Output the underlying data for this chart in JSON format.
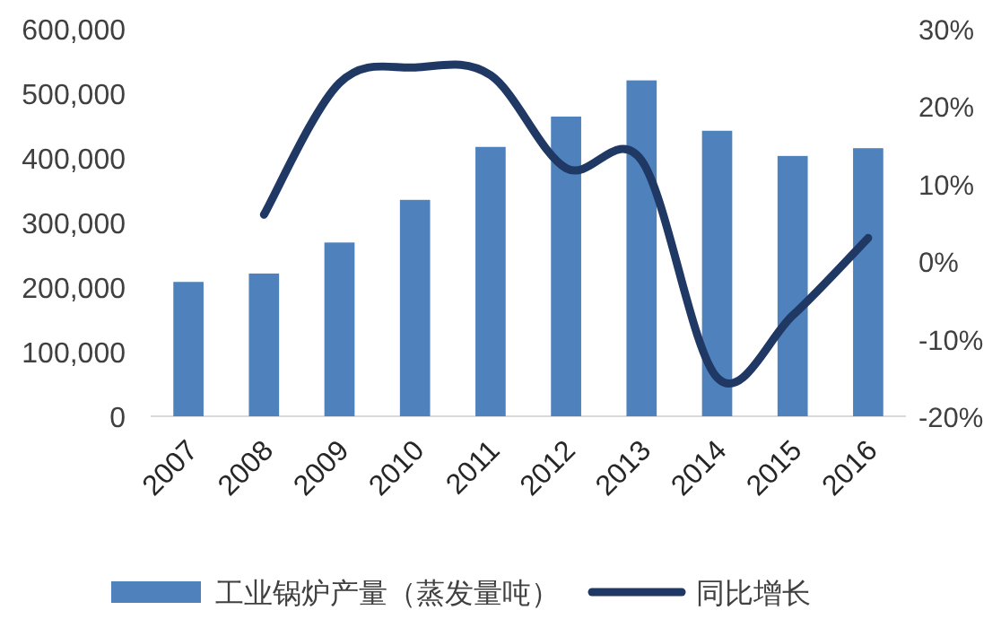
{
  "chart_data": {
    "type": "bar",
    "categories": [
      "2007",
      "2008",
      "2009",
      "2010",
      "2011",
      "2012",
      "2013",
      "2014",
      "2015",
      "2016"
    ],
    "series": [
      {
        "name": "工业锅炉产量（蒸发量吨）",
        "color": "#4f81bd",
        "values": [
          208000,
          221000,
          269000,
          335000,
          417000,
          464000,
          520000,
          442000,
          403000,
          415000
        ]
      },
      {
        "name": "同比增长",
        "type": "line",
        "axis": "y2",
        "color": "#1f3864",
        "values": [
          null,
          6,
          23,
          25,
          24,
          12,
          13,
          -15,
          -7,
          3
        ]
      }
    ],
    "ylim": [
      0,
      600000
    ],
    "yticks": [
      {
        "value": 0,
        "label": "0"
      },
      {
        "value": 100000,
        "label": "100,000"
      },
      {
        "value": 200000,
        "label": "200,000"
      },
      {
        "value": 300000,
        "label": "300,000"
      },
      {
        "value": 400000,
        "label": "400,000"
      },
      {
        "value": 500000,
        "label": "500,000"
      },
      {
        "value": 600000,
        "label": "600,000"
      }
    ],
    "y2lim": [
      -20,
      30
    ],
    "y2ticks": [
      {
        "value": -20,
        "label": "-20%"
      },
      {
        "value": -10,
        "label": "-10%"
      },
      {
        "value": 0,
        "label": "0%"
      },
      {
        "value": 10,
        "label": "10%"
      },
      {
        "value": 20,
        "label": "20%"
      },
      {
        "value": 30,
        "label": "30%"
      }
    ],
    "grid": false,
    "legend": "bottom"
  }
}
